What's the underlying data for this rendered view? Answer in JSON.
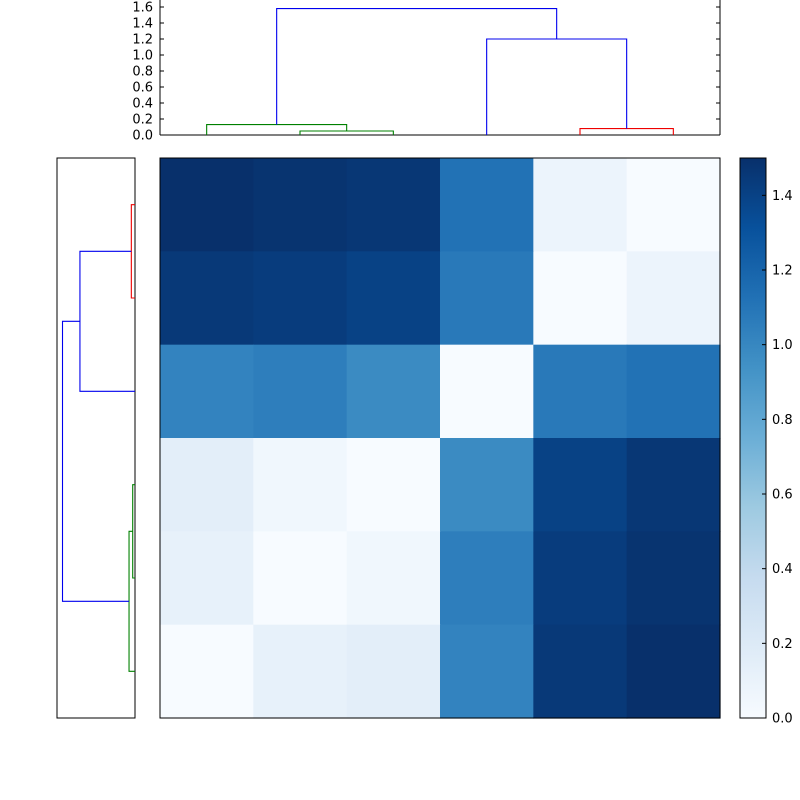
{
  "figure": {
    "background": "#ffffff"
  },
  "chart_data": {
    "type": "heatmap",
    "variant": "clustered-heatmap-with-dendrograms",
    "title": "",
    "xlabel": "",
    "ylabel": "",
    "grid": false,
    "legend": "none",
    "colormap": {
      "name": "Blues",
      "anchors": [
        "#f7fbff",
        "#deebf7",
        "#c6dbef",
        "#9ecae1",
        "#6baed6",
        "#4292c6",
        "#2171b5",
        "#08519c",
        "#08306b"
      ]
    },
    "vmin": 0.0,
    "vmax": 1.5,
    "heatmap": {
      "n_rows": 6,
      "n_cols": 6,
      "description": "symmetric distance matrix reordered by clustering; rows are displayed in reverse order of columns",
      "values": [
        [
          1.5,
          1.48,
          1.46,
          1.12,
          0.08,
          0.0
        ],
        [
          1.45,
          1.43,
          1.4,
          1.08,
          0.0,
          0.08
        ],
        [
          1.02,
          1.05,
          0.98,
          0.0,
          1.08,
          1.12
        ],
        [
          0.15,
          0.05,
          0.0,
          0.98,
          1.4,
          1.46
        ],
        [
          0.12,
          0.0,
          0.05,
          1.05,
          1.43,
          1.48
        ],
        [
          0.0,
          0.12,
          0.15,
          1.02,
          1.45,
          1.5
        ]
      ]
    },
    "top_dendrogram": {
      "ylim": [
        0,
        1.7
      ],
      "axis_ticks": [
        0.0,
        0.2,
        0.4,
        0.6,
        0.8,
        1.0,
        1.2,
        1.4,
        1.6
      ],
      "axis_tick_labels": [
        "0.0",
        "0.2",
        "0.4",
        "0.6",
        "0.8",
        "1.0",
        "1.2",
        "1.4",
        "1.6"
      ],
      "links": [
        {
          "color": "green",
          "left_pos": 1,
          "right_pos": 2,
          "height": 0.05,
          "left_base": 0,
          "right_base": 0
        },
        {
          "color": "green",
          "left_pos": 0,
          "right_pos": 1.5,
          "height": 0.13,
          "left_base": 0,
          "right_base": 0.05
        },
        {
          "color": "red",
          "left_pos": 4,
          "right_pos": 5,
          "height": 0.08,
          "left_base": 0,
          "right_base": 0
        },
        {
          "color": "blue",
          "left_pos": 3,
          "right_pos": 4.5,
          "height": 1.2,
          "left_base": 0,
          "right_base": 0.08
        },
        {
          "color": "blue",
          "left_pos": 0.75,
          "right_pos": 3.75,
          "height": 1.58,
          "left_base": 0.13,
          "right_base": 1.2
        }
      ]
    },
    "left_dendrogram": {
      "xlim": [
        0,
        1.7
      ],
      "links": [
        {
          "color": "red",
          "left_pos": 0,
          "right_pos": 1,
          "height": 0.08,
          "left_base": 0,
          "right_base": 0
        },
        {
          "color": "blue",
          "left_pos": 2,
          "right_pos": 0.5,
          "height": 1.2,
          "left_base": 0,
          "right_base": 0.08
        },
        {
          "color": "green",
          "left_pos": 3,
          "right_pos": 4,
          "height": 0.05,
          "left_base": 0,
          "right_base": 0
        },
        {
          "color": "green",
          "left_pos": 3.5,
          "right_pos": 5,
          "height": 0.13,
          "left_base": 0.05,
          "right_base": 0
        },
        {
          "color": "blue",
          "left_pos": 1.25,
          "right_pos": 4.25,
          "height": 1.58,
          "left_base": 1.2,
          "right_base": 0.13
        }
      ]
    },
    "dendrogram_palette": {
      "green": "#008000",
      "red": "#ee0000",
      "blue": "#0000ee"
    },
    "colorbar": {
      "min": 0.0,
      "max": 1.5,
      "ticks": [
        0.0,
        0.2,
        0.4,
        0.6,
        0.8,
        1.0,
        1.2,
        1.4
      ],
      "tick_labels": [
        "0.0",
        "0.2",
        "0.4",
        "0.6",
        "0.8",
        "1.0",
        "1.2",
        "1.4"
      ],
      "position": "right"
    }
  }
}
